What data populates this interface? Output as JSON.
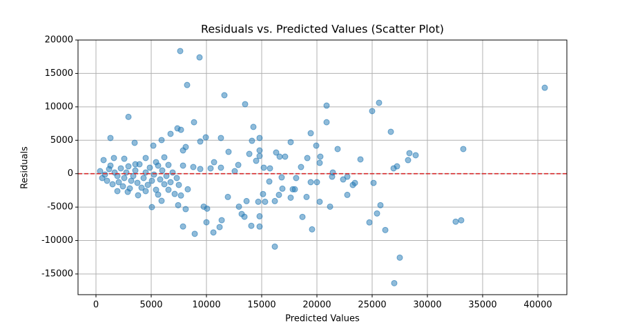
{
  "chart_data": {
    "type": "scatter",
    "title": "Residuals vs. Predicted Values (Scatter Plot)",
    "x_label": "Predicted Values",
    "y_label": "Residuals",
    "color": "#1f77b4",
    "grid": true,
    "hline": {
      "value": 0,
      "color": "#d62728"
    },
    "xlim": [
      -1625,
      42625
    ],
    "ylim": [
      -18100,
      20000
    ],
    "xticks": [
      0,
      5000,
      10000,
      15000,
      20000,
      25000,
      30000,
      35000,
      40000
    ],
    "yticks": [
      -15000,
      -10000,
      -5000,
      0,
      5000,
      10000,
      15000,
      20000
    ],
    "x": [
      7625,
      9375,
      8250,
      11625,
      13500,
      2940,
      8875,
      14250,
      7375,
      7690,
      6750,
      9940,
      1310,
      11310,
      14810,
      5940,
      3500,
      17625,
      8125,
      9440,
      5190,
      7880,
      12000,
      20875,
      20875,
      25000,
      25625,
      26690,
      19440,
      19940,
      21875,
      28375,
      28940,
      28250,
      23940,
      33250,
      40625,
      27250,
      26940,
      20310,
      20250,
      19130,
      18560,
      21440,
      21375,
      22375,
      22750,
      23440,
      23250,
      25125,
      19440,
      20000,
      24750,
      25440,
      25750,
      26190,
      27500,
      27000,
      32560,
      33060,
      22750,
      21190,
      20250,
      19560,
      18690,
      19060,
      16190,
      14810,
      14810,
      14060,
      13190,
      13440,
      12940,
      11940,
      11190,
      11380,
      10630,
      8940,
      10000,
      7880,
      8120,
      9750,
      10060,
      5060,
      7440,
      7690,
      8310,
      13630,
      14690,
      15310,
      16190,
      15120,
      16560,
      16875,
      17625,
      17810,
      18000,
      15690,
      16810,
      18120,
      15190,
      15750,
      16310,
      16625,
      17120,
      14810,
      14810,
      14500,
      13880,
      14120,
      12880,
      12560,
      11310,
      10690,
      10375,
      9440,
      8810,
      7880,
      6560,
      375,
      562,
      812,
      1000,
      1188,
      1312,
      1500,
      1688,
      1938,
      2062,
      2250,
      2438,
      2562,
      2750,
      2938,
      3062,
      3188,
      3375,
      3562,
      3750,
      3938,
      4125,
      4312,
      4500,
      4688,
      4875,
      5062,
      5250,
      5438,
      5625,
      5812,
      6000,
      6188,
      6375,
      6562,
      6750,
      6938,
      7125,
      7312,
      7500,
      688,
      1625,
      2562,
      3562,
      4500,
      5438,
      6188,
      4500,
      2875,
      1938,
      3812,
      5625,
      5938
    ],
    "values": [
      18350,
      17400,
      13270,
      11740,
      10400,
      8500,
      7700,
      7000,
      6780,
      6570,
      5960,
      5440,
      5340,
      5340,
      5340,
      5030,
      4620,
      4720,
      3990,
      4820,
      4200,
      3480,
      3270,
      10190,
      7700,
      9370,
      10610,
      6270,
      6060,
      4200,
      3690,
      3070,
      2760,
      2030,
      2140,
      3690,
      12860,
      1100,
      800,
      2550,
      1620,
      2340,
      1000,
      180,
      -450,
      -860,
      -450,
      -1380,
      -1690,
      -1380,
      -1270,
      -1270,
      -7290,
      -5950,
      -4710,
      -8430,
      -12560,
      -16380,
      -7180,
      -6970,
      -3170,
      -4930,
      -4200,
      -8330,
      -6470,
      -3480,
      -10910,
      -6370,
      -7910,
      -7800,
      -6030,
      -6440,
      -4930,
      -3480,
      -7990,
      -6960,
      -8790,
      -9000,
      -7270,
      -7900,
      -5300,
      -4930,
      -5230,
      -5000,
      -4710,
      -3260,
      -2330,
      -4100,
      -4200,
      -4200,
      -4100,
      -3050,
      -3170,
      -2240,
      -3590,
      -2330,
      -2330,
      -1170,
      -550,
      -650,
      900,
      800,
      3170,
      2550,
      2550,
      3480,
      2650,
      1930,
      2960,
      4920,
      1310,
      380,
      900,
      1720,
      800,
      700,
      1000,
      1210,
      1310,
      380,
      -650,
      -130,
      -1060,
      690,
      1210,
      -1580,
      180,
      -340,
      -1270,
      800,
      -1890,
      -650,
      180,
      1100,
      -2200,
      -1060,
      -340,
      480,
      -1370,
      1410,
      -2100,
      -650,
      180,
      -1680,
      900,
      -1060,
      -130,
      -2410,
      1210,
      -860,
      480,
      -1580,
      -340,
      -2410,
      -1270,
      180,
      -3030,
      -650,
      -1680,
      2040,
      2350,
      2240,
      1410,
      2350,
      1730,
      2450,
      -2610,
      -2720,
      -2610,
      -3230,
      -3130,
      -4060
    ]
  }
}
